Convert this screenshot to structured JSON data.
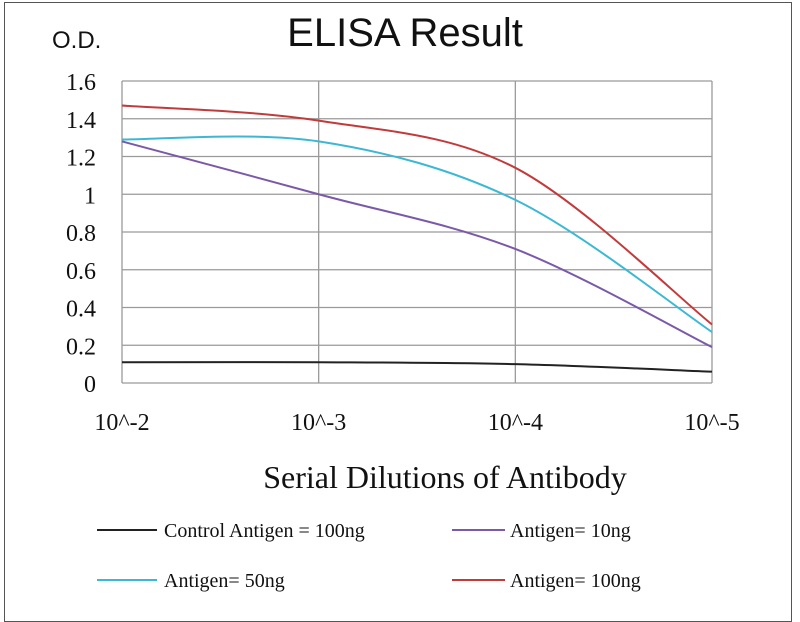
{
  "chart_data": {
    "type": "line",
    "title": "ELISA Result",
    "ylabel": "O.D.",
    "xlabel": "Serial Dilutions  of Antibody",
    "x": [
      "10^-2",
      "10^-3",
      "10^-4",
      "10^-5"
    ],
    "ylim": [
      0,
      1.6
    ],
    "yticks": [
      "0",
      "0.2",
      "0.4",
      "0.6",
      "0.8",
      "1",
      "1.2",
      "1.4",
      "1.6"
    ],
    "grid": "on",
    "legend_position": "bottom",
    "series": [
      {
        "name": "Control Antigen = 100ng",
        "color": "#222222",
        "values": [
          0.11,
          0.11,
          0.1,
          0.06
        ]
      },
      {
        "name": "Antigen= 10ng",
        "color": "#7a5aa8",
        "values": [
          1.28,
          1.0,
          0.71,
          0.19
        ]
      },
      {
        "name": "Antigen= 50ng",
        "color": "#3cb8d4",
        "values": [
          1.29,
          1.28,
          0.97,
          0.27
        ]
      },
      {
        "name": "Antigen= 100ng",
        "color": "#c23b3b",
        "values": [
          1.47,
          1.39,
          1.14,
          0.31
        ]
      }
    ]
  }
}
